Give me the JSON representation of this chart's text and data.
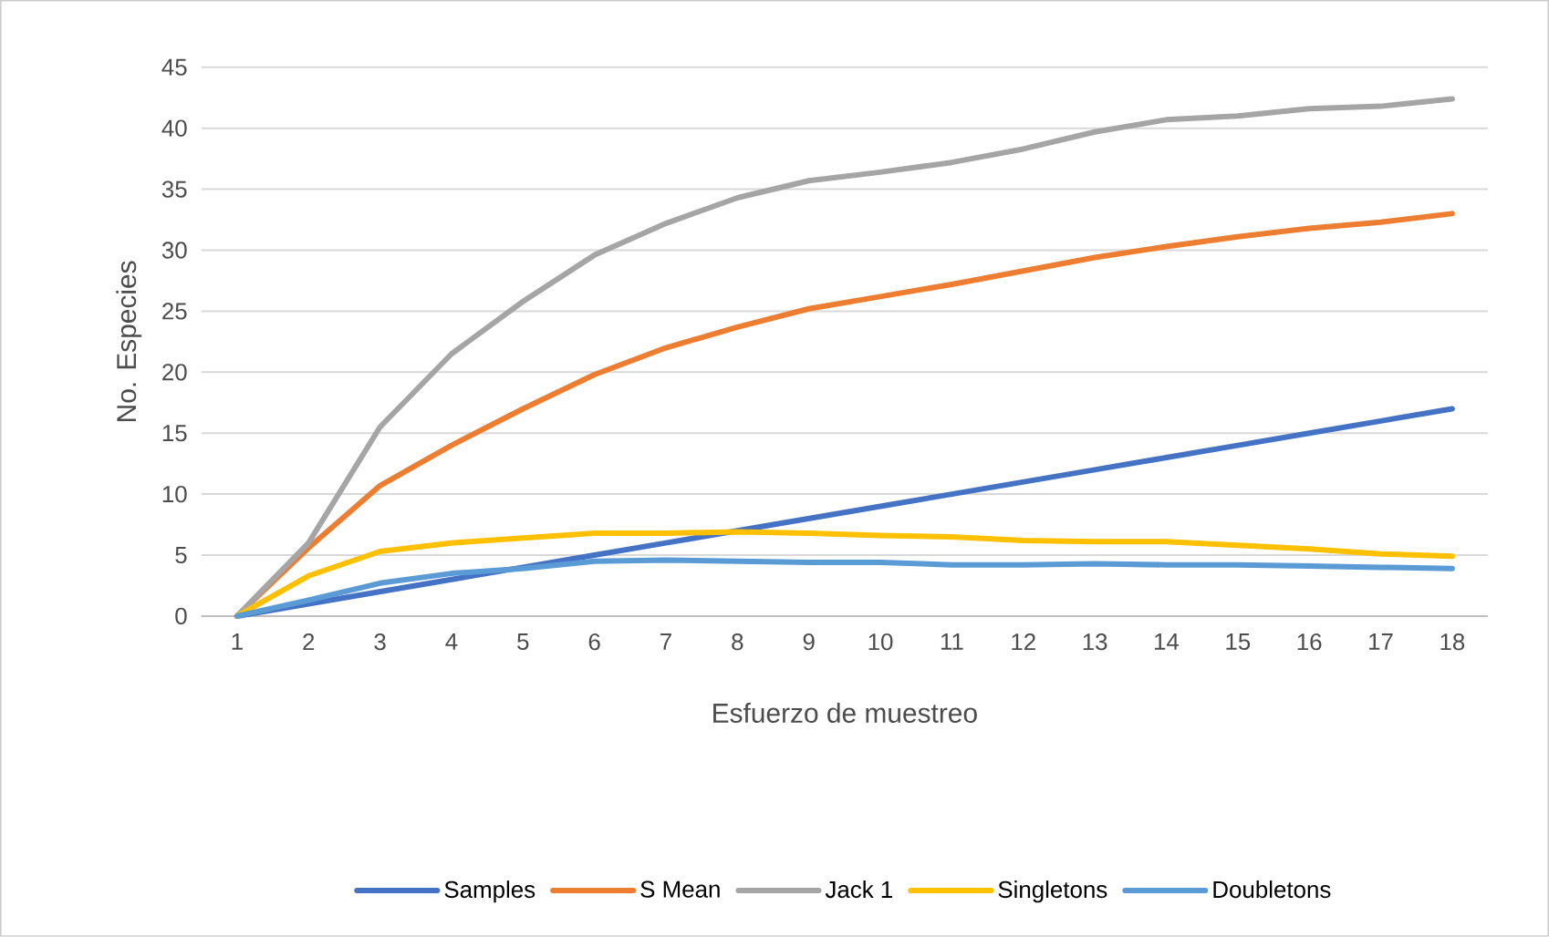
{
  "chart_data": {
    "type": "line",
    "xlabel": "Esfuerzo de muestreo",
    "ylabel": "No. Especies",
    "categories": [
      "1",
      "2",
      "3",
      "4",
      "5",
      "6",
      "7",
      "8",
      "9",
      "10",
      "11",
      "12",
      "13",
      "14",
      "15",
      "16",
      "17",
      "18"
    ],
    "series": [
      {
        "name": "Samples",
        "color": "#4472c4",
        "values": [
          0,
          1,
          2,
          3,
          4,
          5,
          6,
          7,
          8,
          9,
          10,
          11,
          12,
          13,
          14,
          15,
          16,
          17
        ]
      },
      {
        "name": "S Mean",
        "color": "#ed7d31",
        "values": [
          0,
          5.6,
          10.7,
          14,
          17,
          19.8,
          22,
          23.7,
          25.2,
          26.2,
          27.2,
          28.3,
          29.4,
          30.3,
          31.1,
          31.8,
          32.3,
          33
        ]
      },
      {
        "name": "Jack 1",
        "color": "#a5a5a5",
        "values": [
          0,
          6,
          15.5,
          21.5,
          25.8,
          29.6,
          32.2,
          34.3,
          35.7,
          36.4,
          37.2,
          38.3,
          39.7,
          40.7,
          41,
          41.6,
          41.8,
          42.4
        ]
      },
      {
        "name": "Singletons",
        "color": "#ffc000",
        "values": [
          0,
          3.3,
          5.3,
          6,
          6.4,
          6.8,
          6.8,
          6.9,
          6.8,
          6.6,
          6.5,
          6.2,
          6.1,
          6.1,
          5.8,
          5.5,
          5.1,
          4.9
        ]
      },
      {
        "name": "Doubletons",
        "color": "#5b9bd5",
        "values": [
          0,
          1.3,
          2.7,
          3.5,
          3.9,
          4.5,
          4.6,
          4.5,
          4.4,
          4.4,
          4.2,
          4.2,
          4.3,
          4.2,
          4.2,
          4.1,
          4.0,
          3.9
        ]
      }
    ],
    "ylim": [
      0,
      45
    ],
    "yticks": [
      0,
      5,
      10,
      15,
      20,
      25,
      30,
      35,
      40,
      45
    ],
    "grid": "y",
    "legend": "bottom",
    "marker": "none",
    "line_style": "solid"
  }
}
